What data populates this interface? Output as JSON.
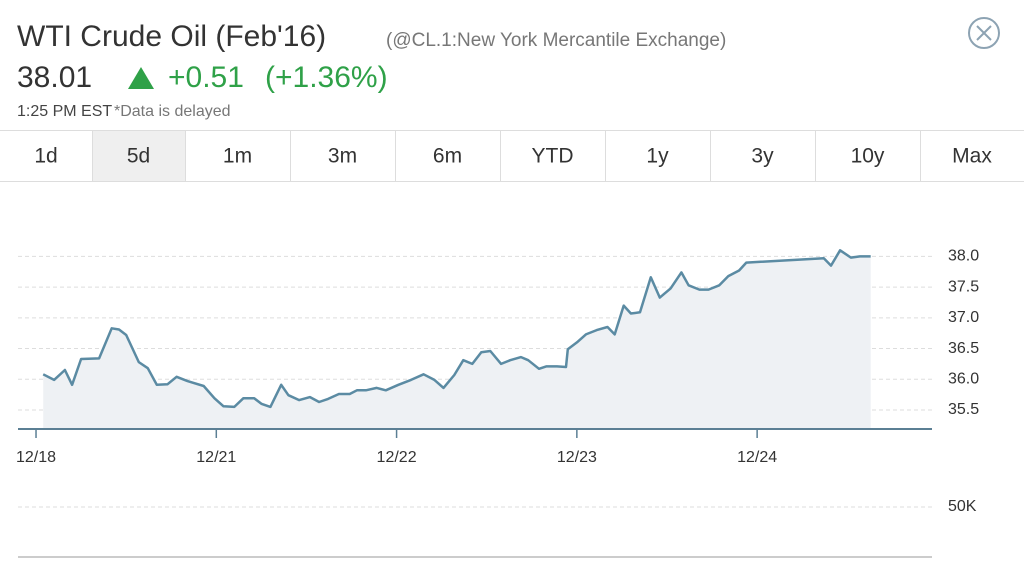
{
  "header": {
    "title": "WTI Crude Oil (Feb'16)",
    "subtitle": "(@CL.1:New York Mercantile Exchange)",
    "price": "38.01",
    "change": "+0.51",
    "change_pct": "(+1.36%)",
    "time": "1:25 PM EST",
    "note": "*Data is delayed"
  },
  "tabs": {
    "items": [
      "1d",
      "5d",
      "1m",
      "3m",
      "6m",
      "YTD",
      "1y",
      "3y",
      "10y",
      "Max"
    ],
    "selected": 1
  },
  "chart_data": {
    "type": "line",
    "x": [
      0.04,
      0.1,
      0.16,
      0.2,
      0.25,
      0.35,
      0.42,
      0.46,
      0.5,
      0.57,
      0.62,
      0.67,
      0.73,
      0.78,
      0.84,
      0.93,
      0.99,
      1.04,
      1.1,
      1.15,
      1.21,
      1.25,
      1.3,
      1.36,
      1.4,
      1.46,
      1.52,
      1.57,
      1.62,
      1.68,
      1.74,
      1.78,
      1.83,
      1.89,
      1.94,
      2.01,
      2.08,
      2.15,
      2.21,
      2.26,
      2.32,
      2.37,
      2.42,
      2.47,
      2.52,
      2.58,
      2.63,
      2.69,
      2.73,
      2.79,
      2.83,
      2.89,
      2.94,
      2.95,
      3.0,
      3.05,
      3.11,
      3.17,
      3.21,
      3.26,
      3.3,
      3.35,
      3.41,
      3.46,
      3.52,
      3.58,
      3.62,
      3.68,
      3.73,
      3.79,
      3.84,
      3.9,
      3.94,
      4.37,
      4.41,
      4.46,
      4.52,
      4.57,
      4.63
    ],
    "series": [
      {
        "name": "CL.1",
        "color": "#5b8ba3",
        "values": [
          36.08,
          35.99,
          36.15,
          35.91,
          36.33,
          36.34,
          36.83,
          36.81,
          36.72,
          36.28,
          36.18,
          35.91,
          35.92,
          36.04,
          35.97,
          35.89,
          35.69,
          35.56,
          35.55,
          35.69,
          35.69,
          35.6,
          35.55,
          35.91,
          35.74,
          35.66,
          35.71,
          35.63,
          35.68,
          35.76,
          35.76,
          35.82,
          35.82,
          35.86,
          35.82,
          35.91,
          35.99,
          36.08,
          35.99,
          35.86,
          36.07,
          36.31,
          36.25,
          36.44,
          36.46,
          36.25,
          36.31,
          36.36,
          36.31,
          36.17,
          36.21,
          36.21,
          36.2,
          36.49,
          36.6,
          36.73,
          36.8,
          36.85,
          36.73,
          37.2,
          37.07,
          37.09,
          37.66,
          37.33,
          37.48,
          37.74,
          37.53,
          37.46,
          37.46,
          37.53,
          37.68,
          37.77,
          37.9,
          37.97,
          37.85,
          38.1,
          37.98,
          38.0,
          38.0
        ]
      }
    ],
    "xlim": [
      -0.1,
      4.97
    ],
    "xticks": [
      {
        "value": 0,
        "label": "12/18"
      },
      {
        "value": 1,
        "label": "12/21"
      },
      {
        "value": 2,
        "label": "12/22"
      },
      {
        "value": 3,
        "label": "12/23"
      },
      {
        "value": 4,
        "label": "12/24"
      }
    ],
    "ylim": [
      35.19,
      39.0
    ],
    "yticks": [
      35.5,
      {
        "value": 36,
        "label": "36.0"
      },
      36.5,
      {
        "value": 37,
        "label": "37.0"
      },
      37.5,
      {
        "value": 38,
        "label": "38.0"
      }
    ],
    "grid": true,
    "volume_ylim": [
      0,
      87000
    ],
    "volume_ticks": [
      {
        "value": 50000,
        "label": "50K"
      }
    ]
  }
}
